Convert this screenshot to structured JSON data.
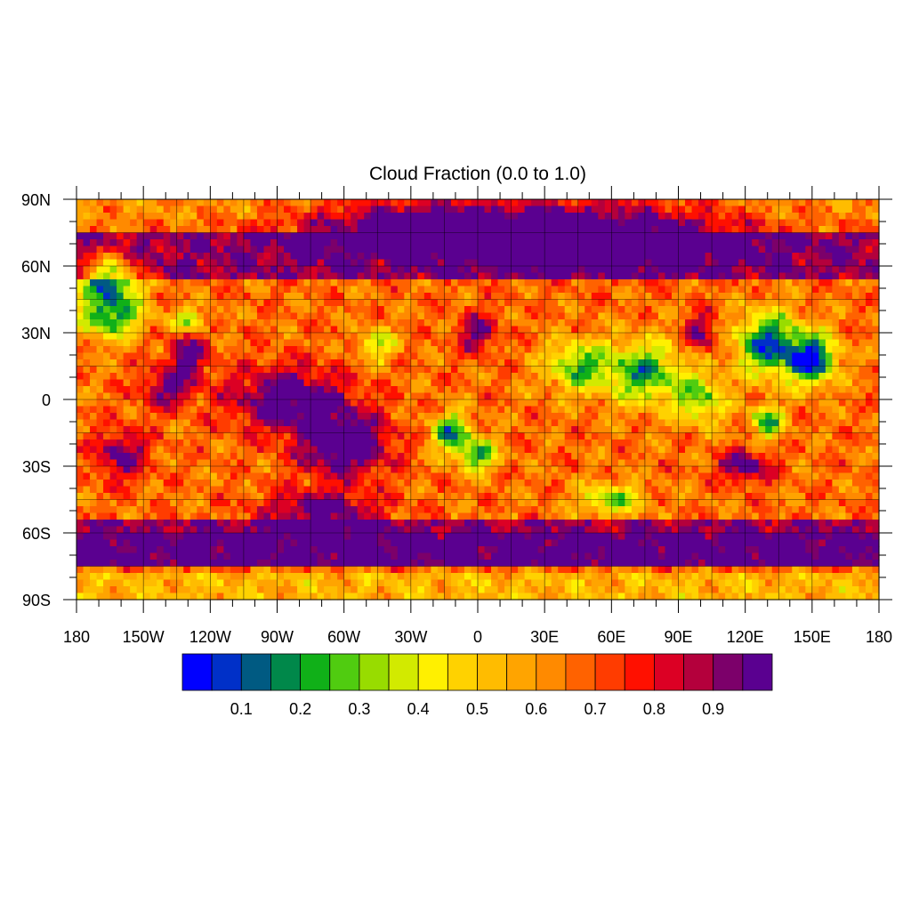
{
  "map": {
    "title": "Cloud Fraction (0.0 to 1.0)",
    "projection": "cylindrical-equidistant",
    "lon_range": [
      -180,
      180
    ],
    "lat_range": [
      -90,
      90
    ],
    "grid": true,
    "lon_ticks": [
      {
        "value": -180,
        "label": "180"
      },
      {
        "value": -150,
        "label": "150W"
      },
      {
        "value": -120,
        "label": "120W"
      },
      {
        "value": -90,
        "label": "90W"
      },
      {
        "value": -60,
        "label": "60W"
      },
      {
        "value": -30,
        "label": "30W"
      },
      {
        "value": 0,
        "label": "0"
      },
      {
        "value": 30,
        "label": "30E"
      },
      {
        "value": 60,
        "label": "60E"
      },
      {
        "value": 90,
        "label": "90E"
      },
      {
        "value": 120,
        "label": "120E"
      },
      {
        "value": 150,
        "label": "150E"
      },
      {
        "value": 180,
        "label": "180"
      }
    ],
    "lat_ticks": [
      {
        "value": 90,
        "label": "90N"
      },
      {
        "value": 60,
        "label": "60N"
      },
      {
        "value": 30,
        "label": "30N"
      },
      {
        "value": 0,
        "label": "0"
      },
      {
        "value": -30,
        "label": "30S"
      },
      {
        "value": -60,
        "label": "60S"
      },
      {
        "value": -90,
        "label": "90S"
      }
    ]
  },
  "colorbar": {
    "colors": [
      "#0000ff",
      "#0030c8",
      "#005a82",
      "#00884a",
      "#10b018",
      "#50cc10",
      "#98dc00",
      "#d2ea00",
      "#fff000",
      "#ffd200",
      "#ffbc00",
      "#ffa400",
      "#ff8a00",
      "#ff6200",
      "#ff3c00",
      "#ff1000",
      "#dc0024",
      "#b4003c",
      "#7c006a",
      "#5a0090"
    ],
    "labels": [
      "0.1",
      "0.2",
      "0.3",
      "0.4",
      "0.5",
      "0.6",
      "0.7",
      "0.8",
      "0.9"
    ]
  }
}
